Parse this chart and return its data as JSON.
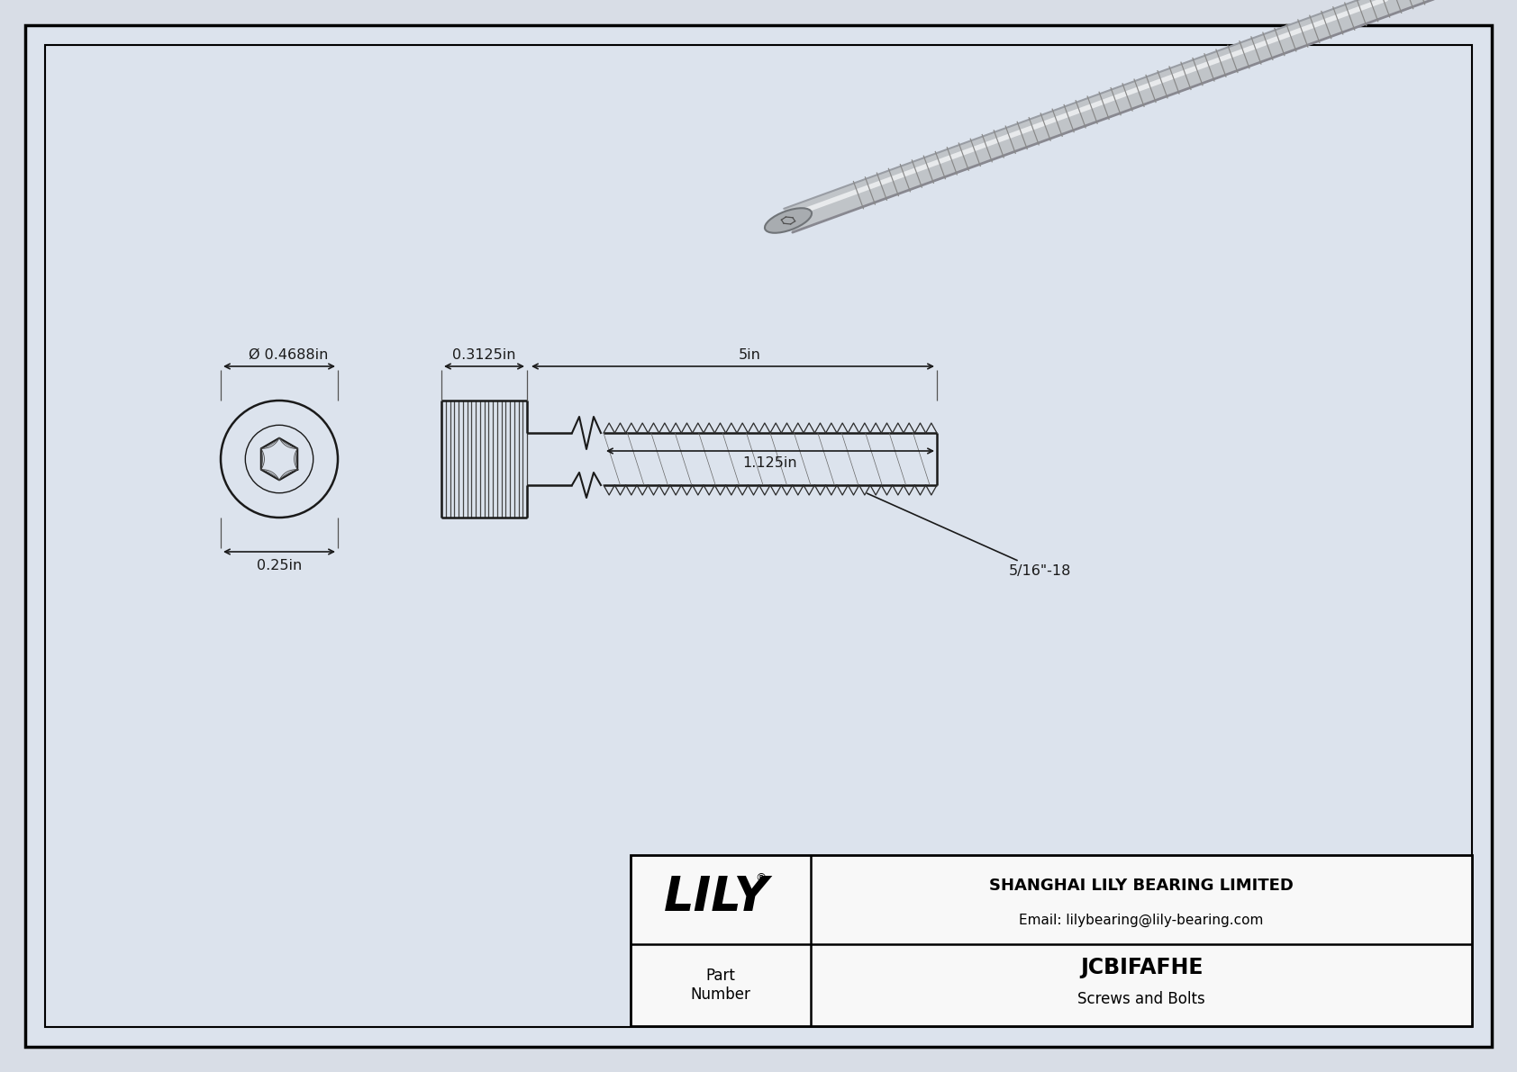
{
  "bg_color": "#d8dde6",
  "drawing_bg": "#dce3ed",
  "border_color": "#000000",
  "line_color": "#2a2a2a",
  "dim_color": "#1a1a1a",
  "title": "JCBIFAFHE",
  "subtitle": "Screws and Bolts",
  "company": "SHANGHAI LILY BEARING LIMITED",
  "email": "Email: lilybearing@lily-bearing.com",
  "part_label": "Part\nNumber",
  "lily_text": "LILY",
  "dim_diameter": "Ø 0.4688in",
  "dim_height": "0.25in",
  "dim_head_length": "0.3125in",
  "dim_total_length": "5in",
  "dim_thread_length": "1.125in",
  "dim_thread_spec": "5/16\"-18"
}
